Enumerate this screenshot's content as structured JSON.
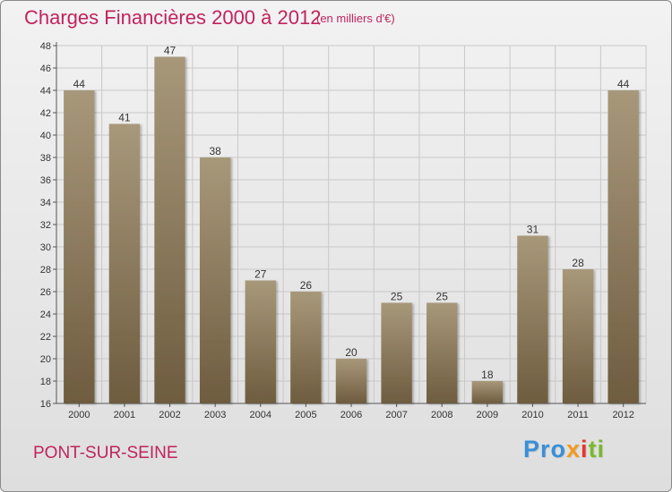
{
  "header": {
    "title": "Charges Financières 2000 à 2012",
    "subtitle": "(en milliers d'€)"
  },
  "footer": {
    "commune": "PONT-SUR-SEINE",
    "logo_parts": [
      "Pro",
      "x",
      "i",
      "ti"
    ]
  },
  "colors": {
    "bar_top": "#a8987a",
    "bar_bottom": "#6e5c3f",
    "grid": "#c8c8c8",
    "title": "#c0245c"
  },
  "chart_data": {
    "type": "bar",
    "title": "Charges Financières 2000 à 2012",
    "subtitle": "(en milliers d'€)",
    "categories": [
      "2000",
      "2001",
      "2002",
      "2003",
      "2004",
      "2005",
      "2006",
      "2007",
      "2008",
      "2009",
      "2010",
      "2011",
      "2012"
    ],
    "values": [
      44,
      41,
      47,
      38,
      27,
      26,
      20,
      25,
      25,
      18,
      31,
      28,
      44
    ],
    "ylim": [
      16,
      48
    ],
    "yticks": [
      16,
      18,
      20,
      22,
      24,
      26,
      28,
      30,
      32,
      34,
      36,
      38,
      40,
      42,
      44,
      46,
      48
    ],
    "grid": true,
    "legend": "none"
  }
}
